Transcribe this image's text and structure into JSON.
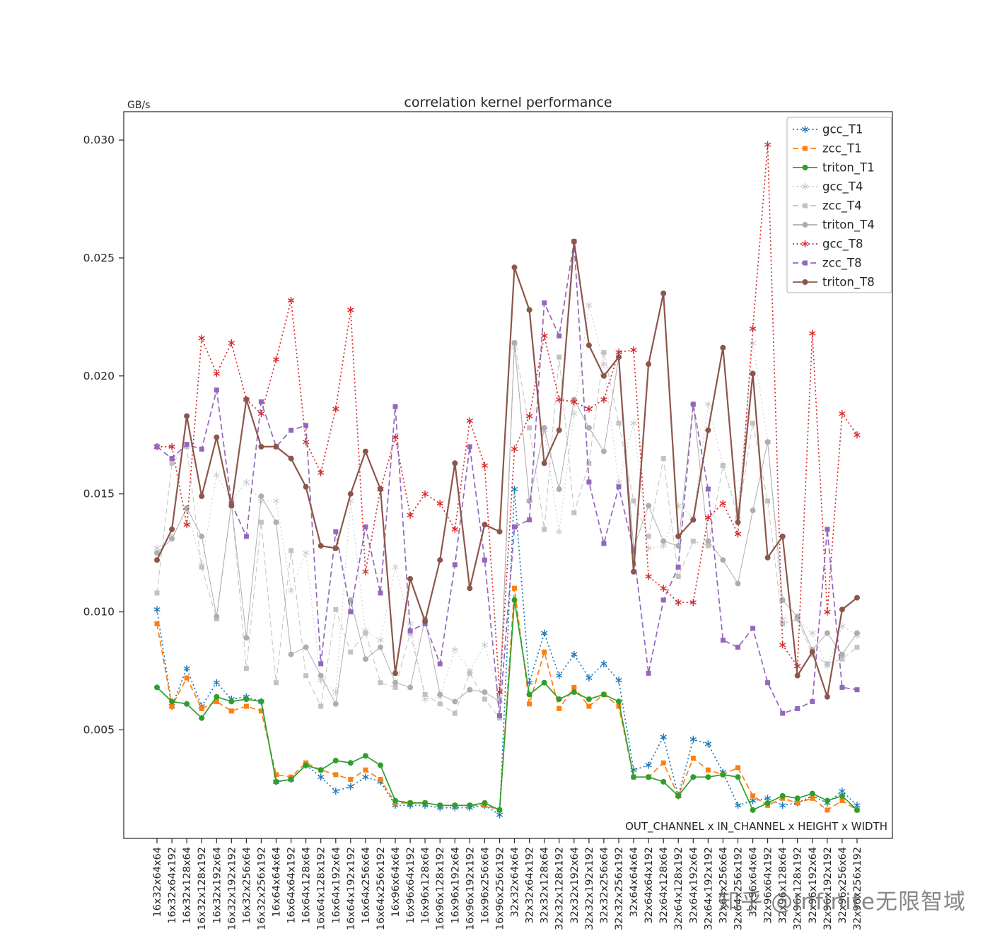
{
  "title": "correlation kernel performance",
  "y_axis_unit": "GB/s",
  "x_axis_note": "OUT_CHANNEL x IN_CHANNEL x HEIGHT x WIDTH",
  "watermark": "知乎 @Infinite无限智域",
  "chart_data": {
    "type": "line",
    "title": "correlation kernel performance",
    "ylabel": "GB/s",
    "xlabel": "OUT_CHANNEL x IN_CHANNEL x HEIGHT x WIDTH",
    "ylim": [
      0,
      0.031
    ],
    "yticks": [
      0.005,
      0.01,
      0.015,
      0.02,
      0.025,
      0.03
    ],
    "grid": false,
    "legend_position": "upper right",
    "categories": [
      "16x32x64x64",
      "16x32x64x192",
      "16x32x128x64",
      "16x32x128x192",
      "16x32x192x64",
      "16x32x192x192",
      "16x32x256x64",
      "16x32x256x192",
      "16x64x64x64",
      "16x64x64x192",
      "16x64x128x64",
      "16x64x128x192",
      "16x64x192x64",
      "16x64x192x192",
      "16x64x256x64",
      "16x64x256x192",
      "16x96x64x64",
      "16x96x64x192",
      "16x96x128x64",
      "16x96x128x192",
      "16x96x192x64",
      "16x96x192x192",
      "16x96x256x64",
      "16x96x256x192",
      "32x32x64x64",
      "32x32x64x192",
      "32x32x128x64",
      "32x32x128x192",
      "32x32x192x64",
      "32x32x192x192",
      "32x32x256x64",
      "32x32x256x192",
      "32x64x64x64",
      "32x64x64x192",
      "32x64x128x64",
      "32x64x128x192",
      "32x64x192x64",
      "32x64x192x192",
      "32x64x256x64",
      "32x64x256x192",
      "32x96x64x64",
      "32x96x64x192",
      "32x96x128x64",
      "32x96x128x192",
      "32x96x192x64",
      "32x96x192x192",
      "32x96x256x64",
      "32x96x256x192"
    ],
    "series": [
      {
        "name": "gcc_T1",
        "color": "#1f77b4",
        "line": "dotted",
        "marker": "star",
        "values": [
          0.0101,
          0.006,
          0.0076,
          0.006,
          0.007,
          0.0063,
          0.0064,
          0.0062,
          0.0028,
          0.0029,
          0.0035,
          0.003,
          0.0024,
          0.0026,
          0.003,
          0.0028,
          0.0018,
          0.0018,
          0.0018,
          0.0017,
          0.0017,
          0.0017,
          0.0018,
          0.0014,
          0.0152,
          0.007,
          0.0091,
          0.0073,
          0.0082,
          0.0072,
          0.0078,
          0.0071,
          0.0033,
          0.0035,
          0.0047,
          0.0022,
          0.0046,
          0.0044,
          0.0032,
          0.0018,
          0.002,
          0.0021,
          0.0018,
          0.0019,
          0.0022,
          0.0019,
          0.0024,
          0.0018
        ]
      },
      {
        "name": "zcc_T1",
        "color": "#ff7f0e",
        "line": "dashed",
        "marker": "square",
        "values": [
          0.0095,
          0.006,
          0.0072,
          0.0059,
          0.0062,
          0.0058,
          0.006,
          0.0058,
          0.0031,
          0.003,
          0.0036,
          0.0033,
          0.0031,
          0.0029,
          0.0033,
          0.0029,
          0.0019,
          0.0019,
          0.0019,
          0.0018,
          0.0018,
          0.0018,
          0.0018,
          0.0016,
          0.011,
          0.0061,
          0.0083,
          0.0059,
          0.0068,
          0.006,
          0.0065,
          0.006,
          0.003,
          0.003,
          0.0036,
          0.0022,
          0.0038,
          0.0033,
          0.0031,
          0.0034,
          0.0022,
          0.0018,
          0.0021,
          0.0019,
          0.0021,
          0.0016,
          0.002,
          0.0016
        ]
      },
      {
        "name": "triton_T1",
        "color": "#2ca02c",
        "line": "solid",
        "marker": "circle",
        "values": [
          0.0068,
          0.0062,
          0.0061,
          0.0055,
          0.0064,
          0.0062,
          0.0063,
          0.0062,
          0.0028,
          0.0029,
          0.0035,
          0.0033,
          0.0037,
          0.0036,
          0.0039,
          0.0035,
          0.002,
          0.0019,
          0.0019,
          0.0018,
          0.0018,
          0.0018,
          0.0019,
          0.0016,
          0.0105,
          0.0065,
          0.007,
          0.0063,
          0.0066,
          0.0063,
          0.0065,
          0.0062,
          0.003,
          0.003,
          0.0028,
          0.0022,
          0.003,
          0.003,
          0.0031,
          0.003,
          0.0016,
          0.0019,
          0.0022,
          0.0021,
          0.0023,
          0.002,
          0.0022,
          0.0016
        ]
      },
      {
        "name": "gcc_T4",
        "color": "#c9c9c9",
        "line": "dotted",
        "marker": "star",
        "values": [
          0.0127,
          0.0132,
          0.0143,
          0.012,
          0.0158,
          0.0147,
          0.0155,
          0.0147,
          0.0147,
          0.0109,
          0.0125,
          0.0071,
          0.0066,
          0.0147,
          0.0092,
          0.0088,
          0.0119,
          0.0095,
          0.0063,
          0.0064,
          0.0084,
          0.0075,
          0.0086,
          0.0064,
          0.0212,
          0.0147,
          0.0177,
          0.0134,
          0.0184,
          0.023,
          0.0205,
          0.0155,
          0.018,
          0.0127,
          0.0128,
          0.0145,
          0.014,
          0.0188,
          0.0162,
          0.0143,
          0.0214,
          0.0172,
          0.0097,
          0.0097,
          0.0091,
          0.0077,
          0.0094,
          0.009
        ]
      },
      {
        "name": "zcc_T4",
        "color": "#c2c2c2",
        "line": "dashed",
        "marker": "square",
        "values": [
          0.0108,
          0.0163,
          0.017,
          0.0119,
          0.0097,
          0.0146,
          0.0076,
          0.0138,
          0.007,
          0.0126,
          0.0073,
          0.006,
          0.0101,
          0.0083,
          0.0091,
          0.007,
          0.0068,
          0.0091,
          0.0065,
          0.0061,
          0.0057,
          0.0074,
          0.0063,
          0.0055,
          0.0214,
          0.0178,
          0.0135,
          0.0208,
          0.0142,
          0.0163,
          0.021,
          0.018,
          0.0147,
          0.0132,
          0.0165,
          0.0115,
          0.013,
          0.0128,
          0.0162,
          0.014,
          0.018,
          0.0147,
          0.0095,
          0.0097,
          0.0082,
          0.0078,
          0.008,
          0.0085
        ]
      },
      {
        "name": "triton_T4",
        "color": "#aeaeae",
        "line": "solid",
        "marker": "circle",
        "values": [
          0.0125,
          0.0131,
          0.0144,
          0.0132,
          0.0098,
          0.0146,
          0.0089,
          0.0149,
          0.0138,
          0.0082,
          0.0085,
          0.0073,
          0.0061,
          0.0105,
          0.008,
          0.0085,
          0.007,
          0.0068,
          0.0097,
          0.0065,
          0.0062,
          0.0067,
          0.0066,
          0.0062,
          0.0214,
          0.0147,
          0.0178,
          0.0152,
          0.019,
          0.0178,
          0.0168,
          0.0208,
          0.0127,
          0.0145,
          0.013,
          0.0128,
          0.0188,
          0.013,
          0.0122,
          0.0112,
          0.0143,
          0.0172,
          0.0105,
          0.0098,
          0.0084,
          0.0091,
          0.0082,
          0.0091
        ]
      },
      {
        "name": "gcc_T8",
        "color": "#d62728",
        "line": "dotted",
        "marker": "star",
        "values": [
          0.017,
          0.017,
          0.0137,
          0.0216,
          0.0201,
          0.0214,
          0.019,
          0.0184,
          0.0207,
          0.0232,
          0.0172,
          0.0159,
          0.0186,
          0.0228,
          0.0117,
          0.0152,
          0.0174,
          0.0141,
          0.015,
          0.0146,
          0.0135,
          0.0181,
          0.0162,
          0.0066,
          0.0169,
          0.0183,
          0.0217,
          0.019,
          0.0189,
          0.0186,
          0.019,
          0.021,
          0.0211,
          0.0115,
          0.011,
          0.0104,
          0.0104,
          0.014,
          0.0146,
          0.0133,
          0.022,
          0.0298,
          0.0086,
          0.0077,
          0.0218,
          0.01,
          0.0184,
          0.0175
        ]
      },
      {
        "name": "zcc_T8",
        "color": "#9467bd",
        "line": "dashed",
        "marker": "square",
        "values": [
          0.017,
          0.0165,
          0.0171,
          0.0169,
          0.0194,
          0.0146,
          0.0132,
          0.0189,
          0.017,
          0.0177,
          0.0179,
          0.0078,
          0.0134,
          0.01,
          0.0136,
          0.0108,
          0.0187,
          0.0092,
          0.0095,
          0.0078,
          0.012,
          0.017,
          0.0122,
          0.0056,
          0.0136,
          0.0139,
          0.0231,
          0.0217,
          0.0257,
          0.0155,
          0.0129,
          0.0153,
          0.0126,
          0.0074,
          0.0105,
          0.0119,
          0.0188,
          0.0152,
          0.0088,
          0.0085,
          0.0093,
          0.007,
          0.0057,
          0.0059,
          0.0062,
          0.0135,
          0.0068,
          0.0067
        ]
      },
      {
        "name": "triton_T8",
        "color": "#8c564b",
        "line": "solid",
        "marker": "circle",
        "values": [
          0.0122,
          0.0135,
          0.0183,
          0.0149,
          0.0174,
          0.0145,
          0.019,
          0.017,
          0.017,
          0.0165,
          0.0153,
          0.0128,
          0.0127,
          0.015,
          0.0168,
          0.0152,
          0.0074,
          0.0114,
          0.0096,
          0.0122,
          0.0163,
          0.011,
          0.0137,
          0.0134,
          0.0246,
          0.0228,
          0.0163,
          0.0177,
          0.0257,
          0.0213,
          0.02,
          0.0208,
          0.0117,
          0.0205,
          0.0235,
          0.0132,
          0.0139,
          0.0177,
          0.0212,
          0.0138,
          0.0201,
          0.0123,
          0.0132,
          0.0073,
          0.0083,
          0.0064,
          0.0101,
          0.0106
        ]
      }
    ]
  }
}
